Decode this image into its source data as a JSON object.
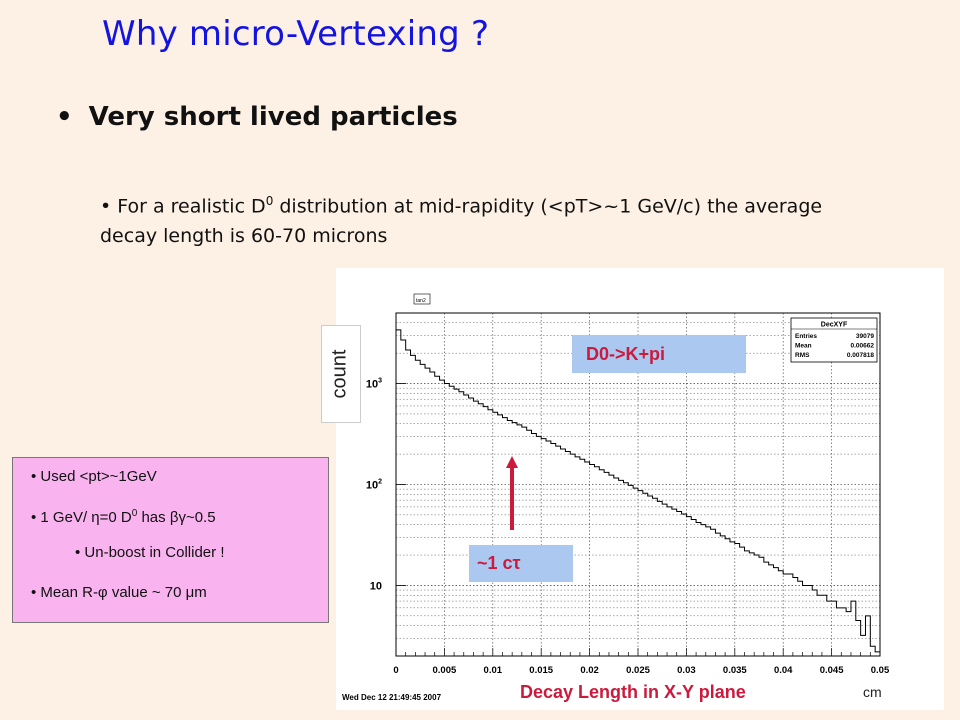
{
  "slide": {
    "title": "Why micro-Vertexing ?",
    "bullet_main": "Very short lived particles",
    "para_pre": "• For a realistic D",
    "para_sup": "0",
    "para_post": " distribution at mid-rapidity (<pT>~1 GeV/c) the average decay length is 60-70 microns"
  },
  "annotations": {
    "count_label": "count",
    "channel_label": "D0->K+pi",
    "ctau_label": "~1 cτ",
    "xaxis_label": "Decay Length in X-Y plane",
    "unit_label": "cm",
    "arrow_color": "#cc1a3c"
  },
  "pinkbox": {
    "line1": "•  Used <pt>~1GeV",
    "line2_pre": "• 1 GeV/ η=0 D",
    "line2_sup": "0",
    "line2_post": " has βγ~0.5",
    "line3": "• Un-boost in Collider !",
    "line4": "•  Mean R-φ value ~ 70 μm"
  },
  "chart_data": {
    "type": "line",
    "title": "",
    "xlabel": "Decay Length in X-Y plane",
    "ylabel": "count",
    "xlim": [
      0,
      0.05
    ],
    "ylog": true,
    "x_ticks": [
      "0",
      "0.005",
      "0.01",
      "0.015",
      "0.02",
      "0.025",
      "0.03",
      "0.035",
      "0.04",
      "0.045",
      "0.05"
    ],
    "y_tick_labels": [
      "10",
      "10²",
      "10³"
    ],
    "grid": true,
    "stats": {
      "name": "DecXYF",
      "entries_label": "Entries",
      "entries": "39079",
      "mean_label": "Mean",
      "mean": "0.00662",
      "rms_label": "RMS",
      "rms": "0.007818"
    },
    "pad_tag": "tan2",
    "timestamp": "Wed Dec 12 21:49:45 2007",
    "series": [
      {
        "x": [
          0.0,
          0.0005,
          0.001,
          0.0015,
          0.002,
          0.0025,
          0.003,
          0.0035,
          0.004,
          0.0045,
          0.005,
          0.0055,
          0.006,
          0.0065,
          0.007,
          0.0075,
          0.008,
          0.0085,
          0.009,
          0.0095,
          0.01,
          0.0105,
          0.011,
          0.0115,
          0.012,
          0.0125,
          0.013,
          0.0135,
          0.014,
          0.0145,
          0.015,
          0.0155,
          0.016,
          0.0165,
          0.017,
          0.0175,
          0.018,
          0.0185,
          0.019,
          0.0195,
          0.02,
          0.0205,
          0.021,
          0.0215,
          0.022,
          0.0225,
          0.023,
          0.0235,
          0.024,
          0.0245,
          0.025,
          0.0255,
          0.026,
          0.0265,
          0.027,
          0.0275,
          0.028,
          0.0285,
          0.029,
          0.0295,
          0.03,
          0.0305,
          0.031,
          0.0315,
          0.032,
          0.0325,
          0.033,
          0.0335,
          0.034,
          0.0345,
          0.035,
          0.0355,
          0.036,
          0.0365,
          0.037,
          0.0375,
          0.038,
          0.0385,
          0.039,
          0.0395,
          0.04,
          0.0405,
          0.041,
          0.0415,
          0.042,
          0.0425,
          0.043,
          0.0435,
          0.044,
          0.0445,
          0.045,
          0.0455,
          0.046,
          0.0465,
          0.047,
          0.0475,
          0.048,
          0.0485,
          0.049,
          0.0495
        ],
        "y": [
          3400,
          2700,
          2150,
          1900,
          1700,
          1550,
          1420,
          1300,
          1180,
          1080,
          1000,
          940,
          880,
          830,
          770,
          720,
          670,
          630,
          590,
          550,
          520,
          490,
          460,
          430,
          410,
          390,
          370,
          345,
          320,
          300,
          285,
          270,
          255,
          240,
          225,
          212,
          200,
          188,
          178,
          167,
          158,
          150,
          140,
          132,
          124,
          116,
          110,
          104,
          98,
          92,
          87,
          82,
          77,
          73,
          68,
          64,
          60,
          57,
          54,
          51,
          48,
          45,
          42,
          40,
          38,
          36,
          33,
          31,
          29,
          27,
          26,
          24,
          22,
          21,
          20,
          19,
          17,
          16,
          15,
          14,
          13,
          13,
          12,
          11,
          10,
          10,
          9,
          8,
          8,
          7,
          7,
          6,
          6,
          5.5,
          7,
          4.5,
          3.2,
          5,
          2.5,
          2.2
        ]
      }
    ]
  }
}
